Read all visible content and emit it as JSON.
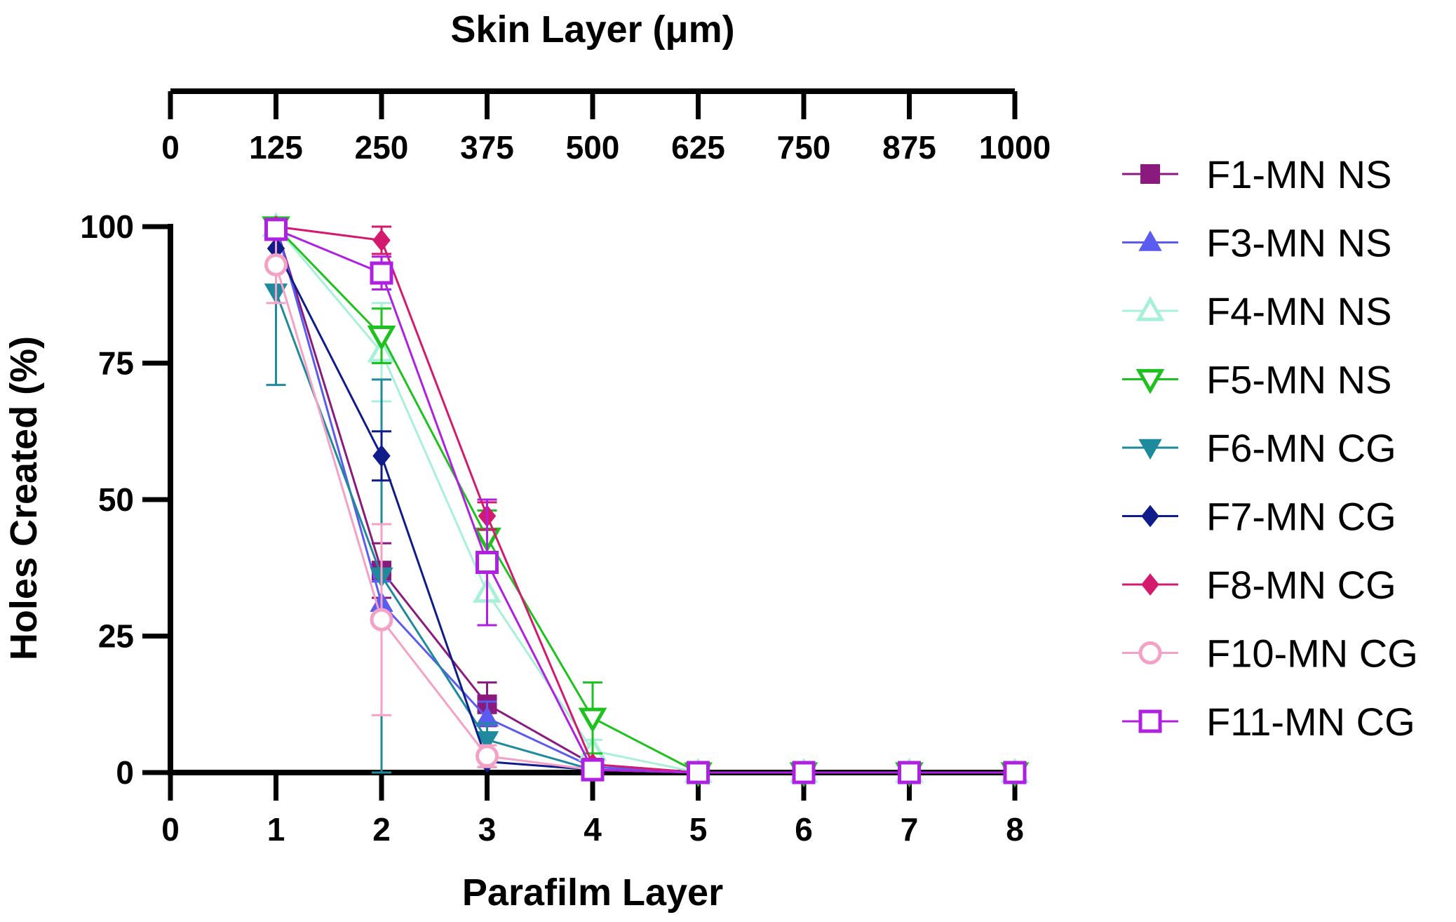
{
  "chart_data": {
    "type": "line",
    "xlabel": "Parafilm Layer",
    "ylabel": "Holes Created  (%)",
    "top_axis_label": "Skin Layer (μm)",
    "x": [
      1,
      2,
      3,
      4,
      5,
      6,
      7,
      8
    ],
    "xlim": [
      0,
      8
    ],
    "ylim": [
      0,
      100
    ],
    "x_ticks": [
      "0",
      "1",
      "2",
      "3",
      "4",
      "5",
      "6",
      "7",
      "8"
    ],
    "y_ticks": [
      "0",
      "25",
      "50",
      "75",
      "100"
    ],
    "top_ticks": [
      "0",
      "125",
      "250",
      "375",
      "500",
      "625",
      "750",
      "875",
      "1000"
    ],
    "legend_position": "right",
    "series": [
      {
        "name": "F1-MN NS",
        "color": "#8B1A7F",
        "marker": "square",
        "filled": true,
        "values": [
          100,
          37,
          12.5,
          1.5,
          0,
          0,
          0,
          0
        ],
        "errors": [
          0,
          5,
          4,
          1,
          0,
          0,
          0,
          0
        ]
      },
      {
        "name": "F3-MN NS",
        "color": "#5B5BF0",
        "marker": "triangle-up",
        "filled": true,
        "values": [
          100,
          31,
          10,
          1,
          0,
          0,
          0,
          0
        ],
        "errors": [
          0,
          4,
          3,
          1,
          0,
          0,
          0,
          0
        ]
      },
      {
        "name": "F4-MN NS",
        "color": "#A8F0D8",
        "marker": "triangle-up",
        "filled": false,
        "values": [
          100,
          77,
          33,
          4,
          0,
          0,
          0,
          0
        ],
        "errors": [
          0,
          9,
          6,
          2,
          0,
          0,
          0,
          0
        ]
      },
      {
        "name": "F5-MN NS",
        "color": "#1EC21E",
        "marker": "triangle-down",
        "filled": false,
        "values": [
          100,
          80,
          43,
          10,
          0,
          0,
          0,
          0
        ],
        "errors": [
          0,
          5,
          5,
          6.5,
          0,
          0,
          0,
          0
        ]
      },
      {
        "name": "F6-MN CG",
        "color": "#1F8A9E",
        "marker": "triangle-down",
        "filled": true,
        "values": [
          88,
          36,
          6,
          0.5,
          0,
          0,
          0,
          0
        ],
        "errors": [
          17,
          36,
          3,
          0.5,
          0,
          0,
          0,
          0
        ]
      },
      {
        "name": "F7-MN CG",
        "color": "#0F1C8A",
        "marker": "diamond",
        "filled": true,
        "values": [
          96,
          58,
          2,
          0.5,
          0,
          0,
          0,
          0
        ],
        "errors": [
          4,
          4.5,
          1,
          0.5,
          0,
          0,
          0,
          0
        ]
      },
      {
        "name": "F8-MN CG",
        "color": "#D41A6E",
        "marker": "diamond",
        "filled": true,
        "values": [
          100,
          97.5,
          47,
          1.5,
          0,
          0,
          0,
          0
        ],
        "errors": [
          0,
          2.5,
          2.5,
          1,
          0,
          0,
          0,
          0
        ]
      },
      {
        "name": "F10-MN CG",
        "color": "#F5A0C5",
        "marker": "circle",
        "filled": false,
        "values": [
          93,
          28,
          3,
          0.5,
          0,
          0,
          0,
          0
        ],
        "errors": [
          7,
          17.5,
          2,
          0.5,
          0,
          0,
          0,
          0
        ]
      },
      {
        "name": "F11-MN CG",
        "color": "#B020E0",
        "marker": "square",
        "filled": false,
        "values": [
          99.5,
          91.5,
          38.5,
          0.5,
          0,
          0,
          0,
          0
        ],
        "errors": [
          0.5,
          3,
          11.5,
          0.5,
          0,
          0,
          0,
          0
        ]
      }
    ]
  }
}
